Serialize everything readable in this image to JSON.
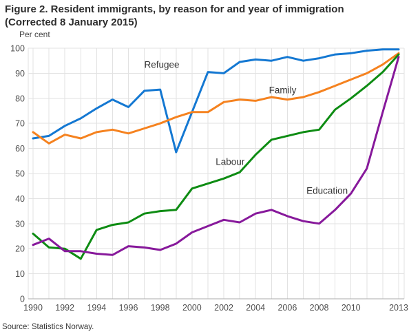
{
  "title": {
    "line1": "Figure 2. Resident immigrants, by reason for and year of immigration",
    "line2": "(Corrected 8 January 2015)"
  },
  "source": "Source: Statistics Norway.",
  "chart_data": {
    "type": "line",
    "title": "Figure 2. Resident immigrants, by reason for and year of immigration (Corrected 8 January 2015)",
    "xlabel": "",
    "ylabel": "Per cent",
    "ylim": [
      0,
      100
    ],
    "ytick_step": 10,
    "grid": true,
    "legend_position": "inline-annotations",
    "x": [
      1990,
      1991,
      1992,
      1993,
      1994,
      1995,
      1996,
      1997,
      1998,
      1999,
      2000,
      2001,
      2002,
      2003,
      2004,
      2005,
      2006,
      2007,
      2008,
      2009,
      2010,
      2011,
      2012,
      2013
    ],
    "xticks": [
      1990,
      1992,
      1994,
      1996,
      1998,
      2000,
      2002,
      2004,
      2006,
      2008,
      2010,
      2013
    ],
    "series": [
      {
        "name": "Refugee",
        "color": "#1478d2",
        "values": [
          64,
          65,
          69,
          72,
          76,
          79.5,
          76.5,
          83,
          83.5,
          58.5,
          74.5,
          90.5,
          90,
          94.5,
          95.5,
          95,
          96.5,
          95,
          96,
          97.5,
          98,
          99,
          99.5,
          99.5
        ]
      },
      {
        "name": "Family",
        "color": "#f5821f",
        "values": [
          66.5,
          62,
          65.5,
          64,
          66.5,
          67.5,
          66,
          68,
          70,
          72.5,
          74.5,
          74.5,
          78.5,
          79.5,
          79,
          80.5,
          79.5,
          80.5,
          82.5,
          85,
          87.5,
          90,
          93.5,
          98
        ]
      },
      {
        "name": "Labour",
        "color": "#0e8c13",
        "values": [
          26,
          20.5,
          20,
          16,
          27.5,
          29.5,
          30.5,
          34,
          35,
          35.5,
          44,
          46,
          48,
          50.5,
          57.5,
          63.5,
          65,
          66.5,
          67.5,
          75.5,
          80,
          85,
          90.5,
          97.5
        ]
      },
      {
        "name": "Education",
        "color": "#87199b",
        "values": [
          21.5,
          24,
          19,
          19,
          18,
          17.5,
          21,
          20.5,
          19.5,
          22,
          26.5,
          29,
          31.5,
          30.5,
          34,
          35.5,
          33,
          31,
          30,
          35.5,
          42,
          52,
          74.5,
          96.5
        ]
      }
    ],
    "annotations": [
      {
        "text": "Refugee",
        "year": 1998.1,
        "value": 93.4
      },
      {
        "text": "Family",
        "year": 2005.7,
        "value": 83.2
      },
      {
        "text": "Labour",
        "year": 2002.4,
        "value": 54.7
      },
      {
        "text": "Education",
        "year": 2008.5,
        "value": 43.1
      }
    ]
  }
}
